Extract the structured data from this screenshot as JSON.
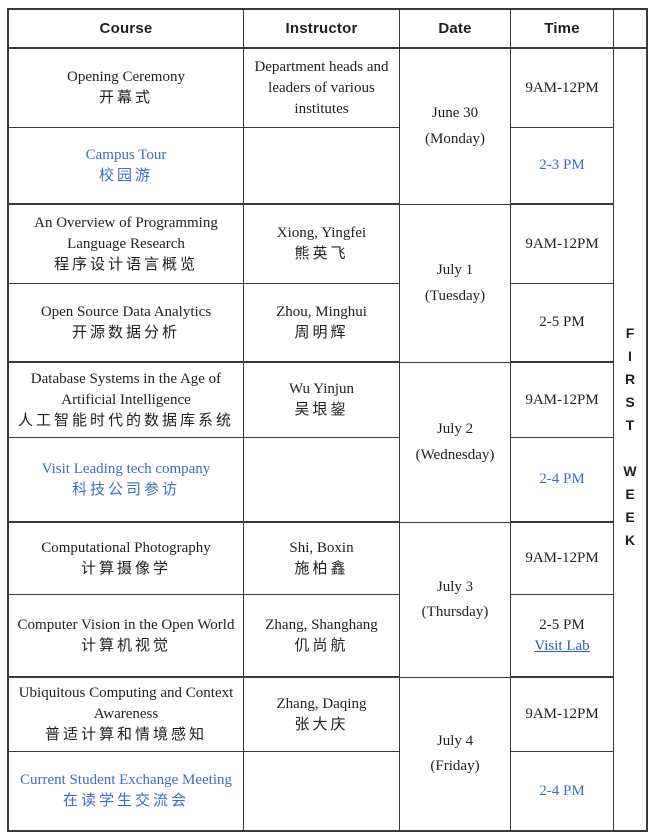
{
  "colors": {
    "accent": "#3D6CC0",
    "link": "#2E5FAD",
    "border": "#3A3A3A",
    "text": "#1F1F1F"
  },
  "header": {
    "columns": [
      "Course",
      "Instructor",
      "Date",
      "Time"
    ]
  },
  "week": {
    "label": "FIRST WEEK"
  },
  "groups": [
    {
      "date_line1": "June 30",
      "date_line2": "(Monday)",
      "rows": [
        {
          "course_en": "Opening Ceremony",
          "course_zh": "开幕式",
          "instructor_en": "Department heads and leaders of various institutes",
          "instructor_zh": "",
          "time": "9AM-12PM"
        },
        {
          "course_en": "Campus Tour",
          "course_zh": "校园游",
          "instructor_en": "",
          "instructor_zh": "",
          "time": "2-3 PM"
        }
      ]
    },
    {
      "date_line1": "July 1",
      "date_line2": "(Tuesday)",
      "rows": [
        {
          "course_en": "An Overview of Programming Language Research",
          "course_zh": "程序设计语言概览",
          "instructor_en": "Xiong, Yingfei",
          "instructor_zh": "熊英飞",
          "time": "9AM-12PM"
        },
        {
          "course_en": "Open Source Data Analytics",
          "course_zh": "开源数据分析",
          "instructor_en": "Zhou, Minghui",
          "instructor_zh": "周明辉",
          "time": "2-5 PM"
        }
      ]
    },
    {
      "date_line1": "July 2",
      "date_line2": "(Wednesday)",
      "rows": [
        {
          "course_en": "Database Systems in the Age of Artificial Intelligence",
          "course_zh": "人工智能时代的数据库系统",
          "instructor_en": "Wu Yinjun",
          "instructor_zh": "吴垠鋆",
          "time": "9AM-12PM"
        },
        {
          "course_en": "Visit Leading tech company",
          "course_zh": "科技公司参访",
          "instructor_en": "",
          "instructor_zh": "",
          "time": "2-4 PM"
        }
      ]
    },
    {
      "date_line1": "July 3",
      "date_line2": "(Thursday)",
      "rows": [
        {
          "course_en": "Computational Photography",
          "course_zh": "计算摄像学",
          "instructor_en": "Shi, Boxin",
          "instructor_zh": "施柏鑫",
          "time": "9AM-12PM"
        },
        {
          "course_en": "Computer Vision in the Open World",
          "course_zh": "计算机视觉",
          "instructor_en": "Zhang, Shanghang",
          "instructor_zh": "仉尚航",
          "time": "2-5 PM",
          "time_link": "Visit Lab"
        }
      ]
    },
    {
      "date_line1": "July 4",
      "date_line2": "(Friday)",
      "rows": [
        {
          "course_en": "Ubiquitous Computing and Context Awareness",
          "course_zh": "普适计算和情境感知",
          "instructor_en": "Zhang, Daqing",
          "instructor_zh": "张大庆",
          "time": "9AM-12PM"
        },
        {
          "course_en": "Current Student Exchange Meeting",
          "course_zh": "在读学生交流会",
          "instructor_en": "",
          "instructor_zh": "",
          "time": "2-4 PM"
        }
      ]
    }
  ]
}
